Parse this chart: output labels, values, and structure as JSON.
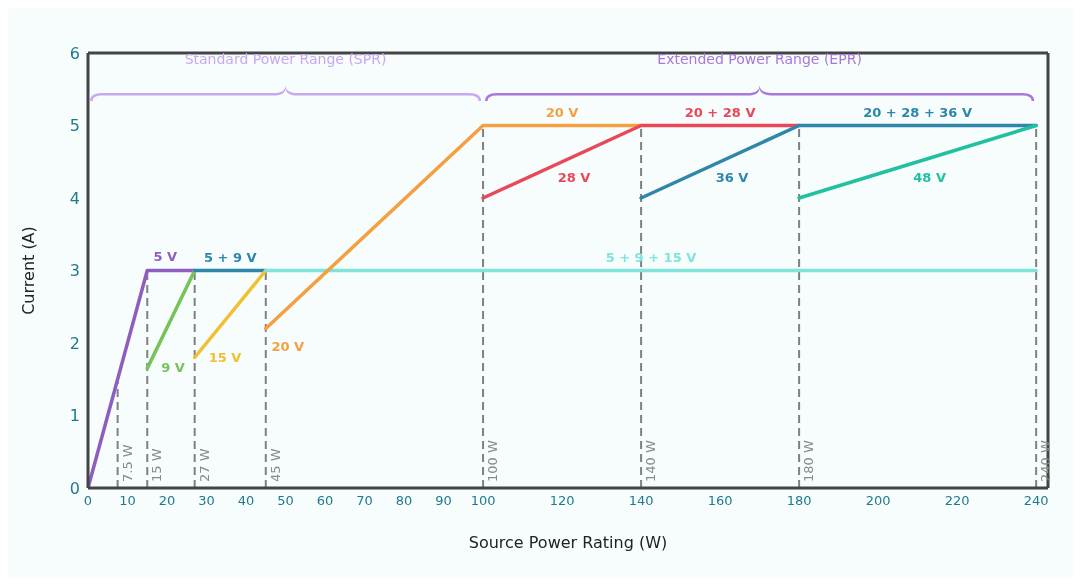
{
  "chart_data": {
    "type": "line",
    "xlabel": "Source Power Rating (W)",
    "ylabel": "Current (A)",
    "xlim": [
      0,
      243
    ],
    "xticks": [
      0,
      10,
      20,
      30,
      40,
      50,
      60,
      70,
      80,
      90,
      100,
      120,
      140,
      160,
      180,
      200,
      220,
      240
    ],
    "ylim": [
      0,
      6
    ],
    "yticks": [
      0,
      1,
      2,
      3,
      4,
      5,
      6
    ],
    "grid": false,
    "legend": false,
    "marker": "none",
    "line_style": "solid",
    "annotations": [
      "Standard Power Range (SPR)",
      "Extended Power Range (EPR)",
      {
        "text": "20 V",
        "x": 120,
        "y": 5
      },
      {
        "text": "20 + 28 V",
        "x": 160,
        "y": 5
      },
      {
        "text": "20 + 28 + 36 V",
        "x": 210,
        "y": 5
      }
    ],
    "ref_lines": [
      {
        "axis": "x",
        "value": 7.5,
        "label": "7.5 W",
        "color": "#808080",
        "line_style": "dashed"
      },
      {
        "axis": "x",
        "value": 15,
        "label": "15 W",
        "color": "#808080",
        "line_style": "dashed"
      },
      {
        "axis": "x",
        "value": 27,
        "label": "27 W",
        "color": "#808080",
        "line_style": "dashed"
      },
      {
        "axis": "x",
        "value": 45,
        "label": "45 W",
        "color": "#808080",
        "line_style": "dashed"
      },
      {
        "axis": "x",
        "value": 100,
        "label": "100 W",
        "color": "#808080",
        "line_style": "dashed"
      },
      {
        "axis": "x",
        "value": 140,
        "label": "140 W",
        "color": "#808080",
        "line_style": "dashed"
      },
      {
        "axis": "x",
        "value": 180,
        "label": "180 W",
        "color": "#808080",
        "line_style": "dashed"
      },
      {
        "axis": "x",
        "value": 240,
        "label": "240 W",
        "color": "#808080",
        "line_style": "dashed"
      }
    ],
    "series": [
      {
        "name": "5 V",
        "color": "#8e5ebf",
        "x": [
          0,
          15,
          27
        ],
        "values": [
          0,
          3,
          3
        ]
      },
      {
        "name": "9 V",
        "color": "#77c35a",
        "x": [
          15,
          27
        ],
        "values": [
          1.65,
          3
        ]
      },
      {
        "name": "5 + 9 V",
        "color": "#2e87a8",
        "x": [
          27,
          45
        ],
        "values": [
          3,
          3
        ]
      },
      {
        "name": "15 V",
        "color": "#f0c030",
        "x": [
          27,
          45
        ],
        "values": [
          1.8,
          3
        ]
      },
      {
        "name": "5 + 9 + 15 V",
        "color": "#80e4dc",
        "x": [
          45,
          240
        ],
        "values": [
          3,
          3
        ]
      },
      {
        "name": "20 V",
        "color": "#f5a040",
        "x": [
          45,
          100,
          140
        ],
        "values": [
          2.2,
          5,
          5
        ]
      },
      {
        "name": "28 V",
        "color": "#e84858",
        "x": [
          100,
          140,
          180
        ],
        "values": [
          4,
          5,
          5
        ]
      },
      {
        "name": "36 V",
        "color": "#2e87a8",
        "x": [
          140,
          180,
          240
        ],
        "values": [
          4,
          5,
          5
        ]
      },
      {
        "name": "48 V",
        "color": "#20c0a0",
        "x": [
          180,
          240
        ],
        "values": [
          4,
          5
        ]
      }
    ]
  }
}
